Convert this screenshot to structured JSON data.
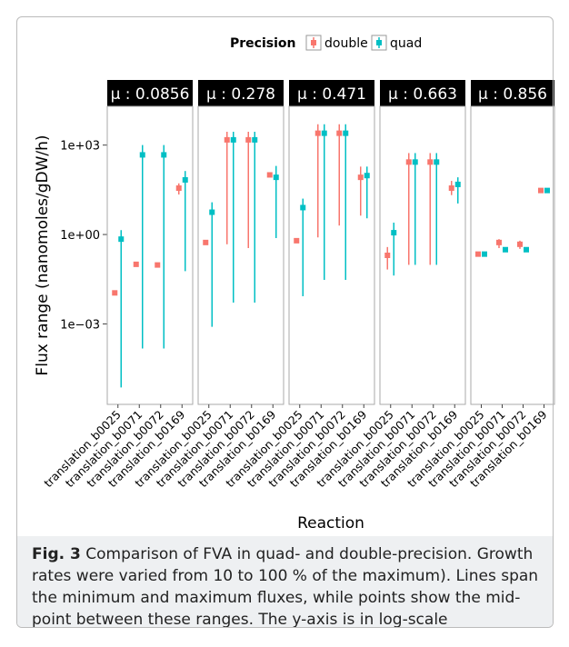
{
  "chart_data": {
    "type": "errorbar",
    "y_label": "Flux range (nanomoles/gDW/h)",
    "x_label": "Reaction",
    "legend_title": "Precision",
    "log_y": true,
    "ylim": [
      2e-06,
      20000
    ],
    "yticks": [
      {
        "value": 0.001,
        "label": "1e−03"
      },
      {
        "value": 1,
        "label": "1e+00"
      },
      {
        "value": 1000,
        "label": "1e+03"
      }
    ],
    "categories": [
      "translation_b0025",
      "translation_b0071",
      "translation_b0072",
      "translation_b0169"
    ],
    "series": [
      {
        "name": "double",
        "color": "#F8766D"
      },
      {
        "name": "quad",
        "color": "#00BFC4"
      }
    ],
    "facets": [
      {
        "label": "μ : 0.0856",
        "series": [
          {
            "values": [
              0.011,
              0.1,
              0.095,
              36
            ],
            "mins": [
              0.011,
              0.1,
              0.095,
              22
            ],
            "maxs": [
              0.011,
              0.1,
              0.095,
              52
            ]
          },
          {
            "values": [
              0.7,
              470,
              470,
              68
            ],
            "mins": [
              7.4e-06,
              0.00015,
              0.00015,
              0.059
            ],
            "maxs": [
              1.4,
              1000,
              1000,
              135
            ]
          }
        ]
      },
      {
        "label": "μ : 0.278",
        "series": [
          {
            "values": [
              0.54,
              1500,
              1500,
              100
            ],
            "mins": [
              0.54,
              0.47,
              0.35,
              100
            ],
            "maxs": [
              0.54,
              2800,
              2800,
              100
            ]
          },
          {
            "values": [
              5.6,
              1500,
              1500,
              83
            ],
            "mins": [
              0.0008,
              0.0052,
              0.0052,
              0.76
            ],
            "maxs": [
              12,
              2800,
              2800,
              200
            ]
          }
        ]
      },
      {
        "label": "μ : 0.471",
        "series": [
          {
            "values": [
              0.62,
              2500,
              2500,
              83
            ],
            "mins": [
              0.62,
              0.8,
              2,
              4.3
            ],
            "maxs": [
              0.62,
              5000,
              5000,
              190
            ]
          },
          {
            "values": [
              8,
              2500,
              2500,
              95
            ],
            "mins": [
              0.0085,
              0.03,
              0.03,
              3.5
            ],
            "maxs": [
              16,
              5000,
              5000,
              190
            ]
          }
        ]
      },
      {
        "label": "μ : 0.663",
        "series": [
          {
            "values": [
              0.2,
              270,
              270,
              36
            ],
            "mins": [
              0.067,
              0.096,
              0.096,
              21
            ],
            "maxs": [
              0.38,
              540,
              540,
              63
            ]
          },
          {
            "values": [
              1.15,
              270,
              270,
              48
            ],
            "mins": [
              0.042,
              0.096,
              0.096,
              11
            ],
            "maxs": [
              2.5,
              540,
              540,
              83
            ]
          }
        ]
      },
      {
        "label": "μ : 0.856",
        "series": [
          {
            "values": [
              0.22,
              0.54,
              0.47,
              30
            ],
            "mins": [
              0.22,
              0.35,
              0.33,
              30
            ],
            "maxs": [
              0.22,
              0.7,
              0.62,
              30
            ]
          },
          {
            "values": [
              0.22,
              0.31,
              0.31,
              30
            ],
            "mins": [
              0.22,
              0.31,
              0.31,
              30
            ],
            "maxs": [
              0.22,
              0.31,
              0.31,
              30
            ]
          }
        ]
      }
    ]
  },
  "caption": {
    "label": "Fig. 3",
    "text": "Comparison of FVA in quad- and double-precision. Growth rates were varied from 10 to 100 % of the maximum). Lines span the minimum and maximum fluxes, while points show the mid-point between these ranges. The y-axis is in log-scale"
  }
}
